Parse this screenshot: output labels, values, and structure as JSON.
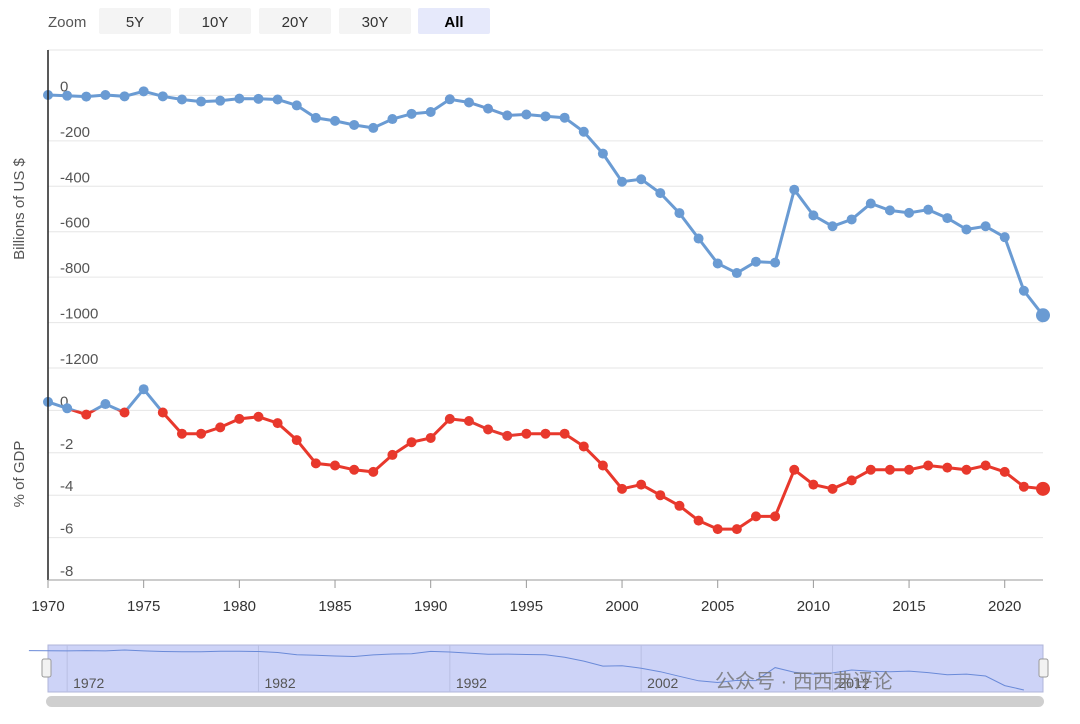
{
  "zoom": {
    "label": "Zoom",
    "buttons": [
      "5Y",
      "10Y",
      "20Y",
      "30Y",
      "All"
    ],
    "selected": 4
  },
  "watermark": "公众号 · 西西弗评论",
  "chart_data": [
    {
      "type": "line",
      "y_label": "Billions of US $",
      "x": [
        1970,
        1971,
        1972,
        1973,
        1974,
        1975,
        1976,
        1977,
        1978,
        1979,
        1980,
        1981,
        1982,
        1983,
        1984,
        1985,
        1986,
        1987,
        1988,
        1989,
        1990,
        1991,
        1992,
        1993,
        1994,
        1995,
        1996,
        1997,
        1998,
        1999,
        2000,
        2001,
        2002,
        2003,
        2004,
        2005,
        2006,
        2007,
        2008,
        2009,
        2010,
        2011,
        2012,
        2013,
        2014,
        2015,
        2016,
        2017,
        2018,
        2019,
        2020,
        2021,
        2022
      ],
      "values": [
        2,
        -1,
        -5,
        2,
        -4,
        18,
        -4,
        -18,
        -27,
        -23,
        -14,
        -15,
        -18,
        -44,
        -99,
        -112,
        -130,
        -143,
        -104,
        -81,
        -73,
        -17,
        -31,
        -58,
        -88,
        -84,
        -92,
        -98,
        -160,
        -256,
        -380,
        -369,
        -430,
        -518,
        -630,
        -740,
        -782,
        -732,
        -736,
        -415,
        -528,
        -576,
        -546,
        -476,
        -506,
        -517,
        -503,
        -540,
        -590,
        -576,
        -624,
        -860,
        -968
      ],
      "color": "#6a9bd3",
      "ylim": [
        -1200,
        200
      ],
      "yticks": [
        0,
        -200,
        -400,
        -600,
        -800,
        -1000,
        -1200
      ],
      "xlim": [
        1970,
        2022
      ]
    },
    {
      "type": "line",
      "y_label": "% of GDP",
      "x": [
        1970,
        1971,
        1972,
        1973,
        1974,
        1975,
        1976,
        1977,
        1978,
        1979,
        1980,
        1981,
        1982,
        1983,
        1984,
        1985,
        1986,
        1987,
        1988,
        1989,
        1990,
        1991,
        1992,
        1993,
        1994,
        1995,
        1996,
        1997,
        1998,
        1999,
        2000,
        2001,
        2002,
        2003,
        2004,
        2005,
        2006,
        2007,
        2008,
        2009,
        2010,
        2011,
        2012,
        2013,
        2014,
        2015,
        2016,
        2017,
        2018,
        2019,
        2020,
        2021,
        2022
      ],
      "values": [
        0.4,
        0.1,
        -0.2,
        0.3,
        -0.1,
        1.0,
        -0.1,
        -1.1,
        -1.1,
        -0.8,
        -0.4,
        -0.3,
        -0.6,
        -1.4,
        -2.5,
        -2.6,
        -2.8,
        -2.9,
        -2.1,
        -1.5,
        -1.3,
        -0.4,
        -0.5,
        -0.9,
        -1.2,
        -1.1,
        -1.1,
        -1.1,
        -1.7,
        -2.6,
        -3.7,
        -3.5,
        -4.0,
        -4.5,
        -5.2,
        -5.6,
        -5.6,
        -5.0,
        -5.0,
        -2.8,
        -3.5,
        -3.7,
        -3.3,
        -2.8,
        -2.8,
        -2.8,
        -2.6,
        -2.7,
        -2.8,
        -2.6,
        -2.9,
        -3.6,
        -3.7
      ],
      "color": "#6a9bd3",
      "negative_color": "#e8382c",
      "threshold": 0,
      "ylim": [
        -8,
        2
      ],
      "yticks": [
        0,
        -2,
        -4,
        -6,
        -8
      ],
      "xlim": [
        1970,
        2022
      ],
      "xticks": [
        1970,
        1975,
        1980,
        1985,
        1990,
        1995,
        2000,
        2005,
        2010,
        2015,
        2020
      ]
    },
    {
      "type": "navigator",
      "xlim": [
        1971,
        2023
      ],
      "xticks": [
        1972,
        1982,
        1992,
        2002,
        2012
      ]
    }
  ]
}
